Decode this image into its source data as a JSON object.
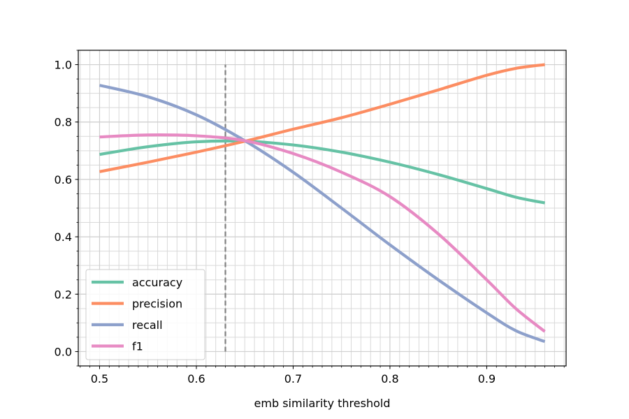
{
  "chart_data": {
    "type": "line",
    "xlabel": "emb similarity threshold",
    "ylabel": "",
    "xlim": [
      0.478,
      0.982
    ],
    "ylim": [
      -0.05,
      1.05
    ],
    "x_major_ticks": [
      "0.5",
      "0.6",
      "0.7",
      "0.8",
      "0.9"
    ],
    "y_major_ticks": [
      "0.0",
      "0.2",
      "0.4",
      "0.6",
      "0.8",
      "1.0"
    ],
    "x_minor_step": 0.01,
    "y_minor_step": 0.05,
    "grid": true,
    "legend_position": "lower-left",
    "threshold_line": {
      "x": 0.63,
      "y_range": [
        0.0,
        1.0
      ],
      "color": "#808080",
      "style": "dashed"
    },
    "x": [
      0.5,
      0.55,
      0.6,
      0.65,
      0.7,
      0.75,
      0.8,
      0.85,
      0.9,
      0.93,
      0.96
    ],
    "series": [
      {
        "name": "accuracy",
        "color": "#66c2a5",
        "values": [
          0.687,
          0.714,
          0.731,
          0.733,
          0.72,
          0.695,
          0.66,
          0.617,
          0.568,
          0.538,
          0.518
        ]
      },
      {
        "name": "precision",
        "color": "#fc8d62",
        "values": [
          0.627,
          0.66,
          0.695,
          0.733,
          0.775,
          0.815,
          0.862,
          0.912,
          0.963,
          0.987,
          1.0
        ]
      },
      {
        "name": "recall",
        "color": "#8da0cb",
        "values": [
          0.928,
          0.888,
          0.825,
          0.735,
          0.625,
          0.5,
          0.372,
          0.25,
          0.135,
          0.073,
          0.035
        ]
      },
      {
        "name": "f1",
        "color": "#e78ac3",
        "values": [
          0.748,
          0.755,
          0.752,
          0.735,
          0.69,
          0.625,
          0.54,
          0.41,
          0.25,
          0.15,
          0.07
        ]
      }
    ]
  }
}
